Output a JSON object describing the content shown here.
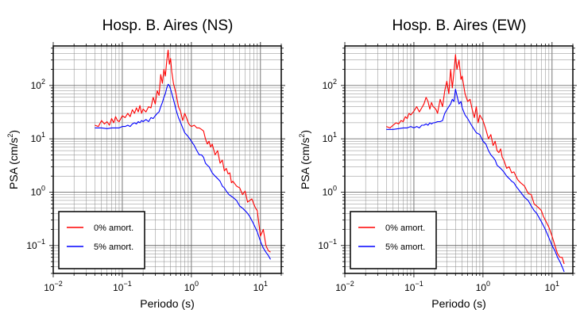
{
  "chart_data": [
    {
      "type": "line",
      "title": "Hosp. B. Aires (NS)",
      "xlabel": "Periodo (s)",
      "ylabel": "PSA (cm/s",
      "ylabel_sup": "2",
      "ylabel_end": ")",
      "x_scale": "log",
      "y_scale": "log",
      "xlim": [
        0.01,
        20
      ],
      "ylim": [
        0.03,
        550
      ],
      "grid": true,
      "legend_position": "bottom-left",
      "xticks": [
        {
          "base": "10",
          "exp": "−2"
        },
        {
          "base": "10",
          "exp": "−1"
        },
        {
          "base": "10",
          "exp": "0"
        },
        {
          "base": "10",
          "exp": "1"
        }
      ],
      "yticks": [
        {
          "base": "10",
          "exp": "−1",
          "value": 0.1
        },
        {
          "base": "10",
          "exp": "0",
          "value": 1
        },
        {
          "base": "10",
          "exp": "1",
          "value": 10
        },
        {
          "base": "10",
          "exp": "2",
          "value": 100
        }
      ],
      "series": [
        {
          "name": "0% amort.",
          "color": "#ff0000",
          "x": [
            0.04,
            0.045,
            0.05,
            0.055,
            0.06,
            0.065,
            0.07,
            0.075,
            0.08,
            0.085,
            0.09,
            0.1,
            0.11,
            0.12,
            0.13,
            0.14,
            0.15,
            0.16,
            0.17,
            0.18,
            0.19,
            0.2,
            0.22,
            0.24,
            0.26,
            0.28,
            0.3,
            0.32,
            0.34,
            0.36,
            0.38,
            0.4,
            0.42,
            0.44,
            0.46,
            0.48,
            0.5,
            0.52,
            0.55,
            0.6,
            0.65,
            0.7,
            0.75,
            0.8,
            0.85,
            0.9,
            0.95,
            1.0,
            1.1,
            1.2,
            1.3,
            1.4,
            1.5,
            1.6,
            1.7,
            1.8,
            1.9,
            2.0,
            2.2,
            2.4,
            2.6,
            2.8,
            3.0,
            3.2,
            3.4,
            3.6,
            3.8,
            4.0,
            4.5,
            5.0,
            5.5,
            6.0,
            6.5,
            7.0,
            7.5,
            8.0,
            8.5,
            9.0,
            10.0,
            11.0,
            12.0,
            13.0,
            14.0
          ],
          "y": [
            18,
            17,
            22,
            19,
            21,
            18,
            24,
            20,
            26,
            22,
            21,
            27,
            25,
            30,
            26,
            35,
            30,
            38,
            32,
            42,
            30,
            36,
            32,
            40,
            38,
            60,
            45,
            80,
            65,
            160,
            110,
            200,
            150,
            290,
            460,
            250,
            320,
            180,
            110,
            70,
            40,
            32,
            22,
            30,
            25,
            20,
            18,
            17,
            18,
            16,
            16,
            15,
            14,
            10,
            8,
            9,
            7,
            8,
            5,
            6,
            3.5,
            4,
            2.5,
            2.8,
            2.2,
            2.3,
            1.5,
            1.6,
            1.3,
            1.2,
            0.9,
            1.05,
            0.65,
            0.7,
            0.75,
            0.6,
            0.5,
            0.45,
            0.15,
            0.2,
            0.1,
            0.08,
            0.075
          ]
        },
        {
          "name": "5% amort.",
          "color": "#0000ff",
          "x": [
            0.04,
            0.05,
            0.06,
            0.07,
            0.08,
            0.09,
            0.1,
            0.11,
            0.12,
            0.13,
            0.14,
            0.15,
            0.16,
            0.17,
            0.18,
            0.19,
            0.2,
            0.22,
            0.24,
            0.26,
            0.28,
            0.3,
            0.32,
            0.34,
            0.36,
            0.38,
            0.4,
            0.42,
            0.44,
            0.46,
            0.48,
            0.5,
            0.55,
            0.6,
            0.65,
            0.7,
            0.75,
            0.8,
            0.9,
            1.0,
            1.1,
            1.2,
            1.3,
            1.4,
            1.5,
            1.6,
            1.7,
            1.8,
            2.0,
            2.2,
            2.4,
            2.6,
            2.8,
            3.0,
            3.2,
            3.5,
            4.0,
            4.5,
            5.0,
            5.5,
            6.0,
            6.5,
            7.0,
            8.0,
            9.0,
            10.0,
            11.0,
            12.0,
            13.0,
            14.0
          ],
          "y": [
            16,
            16,
            15.5,
            16,
            16,
            16,
            17,
            17,
            18,
            17,
            19,
            20,
            19,
            21,
            20,
            22,
            21,
            23,
            21,
            25,
            24,
            27,
            30,
            32,
            40,
            48,
            60,
            70,
            90,
            105,
            100,
            85,
            55,
            35,
            25,
            20,
            16,
            13,
            11,
            9,
            7.5,
            6,
            5,
            5,
            4.5,
            3.5,
            3.2,
            3,
            2.3,
            2,
            1.8,
            1.6,
            1.3,
            1.2,
            1.05,
            0.9,
            0.8,
            0.7,
            0.55,
            0.5,
            0.45,
            0.4,
            0.35,
            0.25,
            0.18,
            0.12,
            0.09,
            0.075,
            0.065,
            0.055
          ]
        }
      ]
    },
    {
      "type": "line",
      "title": "Hosp. B. Aires (EW)",
      "xlabel": "Periodo (s)",
      "ylabel": "PSA (cm/s",
      "ylabel_sup": "2",
      "ylabel_end": ")",
      "x_scale": "log",
      "y_scale": "log",
      "xlim": [
        0.01,
        20
      ],
      "ylim": [
        0.03,
        550
      ],
      "grid": true,
      "legend_position": "bottom-left",
      "xticks": [
        {
          "base": "10",
          "exp": "−2"
        },
        {
          "base": "10",
          "exp": "−1"
        },
        {
          "base": "10",
          "exp": "0"
        },
        {
          "base": "10",
          "exp": "1"
        }
      ],
      "yticks": [
        {
          "base": "10",
          "exp": "−1",
          "value": 0.1
        },
        {
          "base": "10",
          "exp": "0",
          "value": 1
        },
        {
          "base": "10",
          "exp": "1",
          "value": 10
        },
        {
          "base": "10",
          "exp": "2",
          "value": 100
        }
      ],
      "series": [
        {
          "name": "0% amort.",
          "color": "#ff0000",
          "x": [
            0.04,
            0.045,
            0.05,
            0.055,
            0.06,
            0.065,
            0.07,
            0.075,
            0.08,
            0.085,
            0.09,
            0.1,
            0.11,
            0.12,
            0.13,
            0.14,
            0.15,
            0.16,
            0.17,
            0.18,
            0.19,
            0.2,
            0.21,
            0.22,
            0.24,
            0.26,
            0.28,
            0.3,
            0.32,
            0.34,
            0.36,
            0.38,
            0.4,
            0.42,
            0.45,
            0.48,
            0.5,
            0.55,
            0.6,
            0.65,
            0.7,
            0.75,
            0.8,
            0.85,
            0.9,
            1.0,
            1.1,
            1.2,
            1.3,
            1.4,
            1.5,
            1.6,
            1.7,
            1.8,
            1.9,
            2.0,
            2.2,
            2.4,
            2.6,
            2.8,
            3.0,
            3.2,
            3.5,
            4.0,
            4.5,
            5.0,
            5.5,
            6.0,
            6.5,
            7.0,
            7.5,
            8.0,
            9.0,
            10.0,
            11.0,
            12.0,
            13.0,
            14.0,
            15.0
          ],
          "y": [
            17,
            16,
            18,
            20,
            19,
            22,
            21,
            26,
            24,
            30,
            28,
            33,
            40,
            32,
            38,
            45,
            60,
            50,
            36,
            48,
            40,
            38,
            35,
            30,
            55,
            40,
            80,
            120,
            70,
            200,
            90,
            180,
            380,
            200,
            300,
            130,
            150,
            70,
            50,
            55,
            35,
            25,
            40,
            20,
            28,
            22,
            15,
            10,
            12,
            7.5,
            9,
            6,
            5.5,
            6.5,
            4.5,
            4,
            2.8,
            3,
            2.3,
            2.4,
            2,
            1.7,
            1.5,
            1.3,
            0.95,
            0.9,
            0.6,
            0.55,
            0.5,
            0.45,
            0.35,
            0.3,
            0.22,
            0.15,
            0.1,
            0.07,
            0.06,
            0.06,
            0.045
          ]
        },
        {
          "name": "5% amort.",
          "color": "#0000ff",
          "x": [
            0.04,
            0.05,
            0.06,
            0.07,
            0.08,
            0.09,
            0.1,
            0.11,
            0.12,
            0.13,
            0.14,
            0.15,
            0.16,
            0.17,
            0.18,
            0.19,
            0.2,
            0.22,
            0.24,
            0.26,
            0.28,
            0.3,
            0.32,
            0.34,
            0.36,
            0.38,
            0.4,
            0.42,
            0.45,
            0.48,
            0.5,
            0.55,
            0.6,
            0.65,
            0.7,
            0.8,
            0.9,
            1.0,
            1.1,
            1.2,
            1.3,
            1.4,
            1.5,
            1.6,
            1.8,
            2.0,
            2.2,
            2.4,
            2.6,
            2.8,
            3.0,
            3.5,
            4.0,
            4.5,
            5.0,
            5.5,
            6.0,
            7.0,
            8.0,
            9.0,
            10.0,
            11.0,
            12.0,
            13.0,
            14.0,
            15.0
          ],
          "y": [
            15,
            15,
            15.5,
            16,
            16,
            17,
            16,
            17,
            16,
            18,
            18,
            19,
            18,
            20,
            19,
            20,
            20,
            21,
            21,
            22,
            30,
            35,
            40,
            45,
            55,
            50,
            85,
            65,
            45,
            50,
            38,
            28,
            24,
            20,
            17,
            13,
            12,
            9,
            8,
            6,
            5,
            4.5,
            4,
            3.2,
            2.8,
            2.4,
            2,
            1.8,
            1.6,
            1.5,
            1.3,
            1.0,
            0.8,
            0.7,
            0.55,
            0.45,
            0.4,
            0.28,
            0.2,
            0.14,
            0.1,
            0.08,
            0.06,
            0.05,
            0.04,
            0.032
          ]
        }
      ]
    }
  ]
}
